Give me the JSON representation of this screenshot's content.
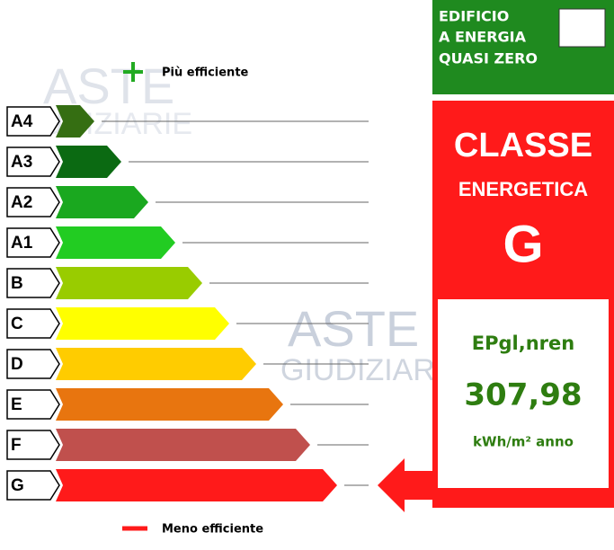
{
  "watermark": {
    "top": "ASTE",
    "bottom": "GIUDIZIARIE"
  },
  "legend": {
    "best": "Più efficiente",
    "worst": "Meno efficiente"
  },
  "classes": [
    {
      "label": "A4",
      "color": "#356e12"
    },
    {
      "label": "A3",
      "color": "#0b6a12"
    },
    {
      "label": "A2",
      "color": "#1aa81f"
    },
    {
      "label": "A1",
      "color": "#22cc22"
    },
    {
      "label": "B",
      "color": "#99cc00"
    },
    {
      "label": "C",
      "color": "#ffff00"
    },
    {
      "label": "D",
      "color": "#ffcc00"
    },
    {
      "label": "E",
      "color": "#e8750f"
    },
    {
      "label": "F",
      "color": "#c0504d"
    },
    {
      "label": "G",
      "color": "#ff1a1a"
    }
  ],
  "nzeb": {
    "lines": [
      "EDIFICIO",
      "A ENERGIA",
      "QUASI ZERO"
    ]
  },
  "result": {
    "heading": "CLASSE",
    "subheading": "ENERGETICA",
    "class": "G",
    "indicator": "EPgl,nren",
    "value": "307,98",
    "unit": "kWh/m² anno"
  }
}
